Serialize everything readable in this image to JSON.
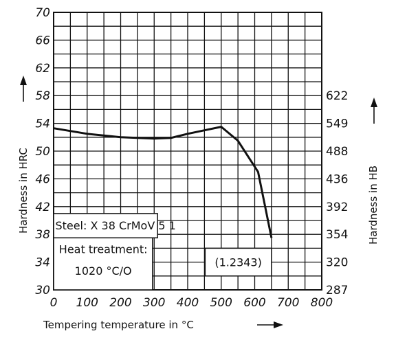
{
  "chart_data": {
    "type": "line",
    "title": "",
    "xlabel": "Tempering temperature in °C",
    "ylabel": "Hardness in HRC",
    "y2label": "Hardness in HB",
    "xlim": [
      0,
      800
    ],
    "ylim": [
      30,
      70
    ],
    "grid": true,
    "x_ticks": [
      "0",
      "100",
      "200",
      "300",
      "400",
      "500",
      "600",
      "700",
      "800"
    ],
    "y_ticks": [
      "30",
      "34",
      "38",
      "42",
      "46",
      "50",
      "54",
      "58",
      "62",
      "66",
      "70"
    ],
    "y2_ticks": [
      {
        "hrc": 30,
        "label": "287"
      },
      {
        "hrc": 34,
        "label": "320"
      },
      {
        "hrc": 38,
        "label": "354"
      },
      {
        "hrc": 42,
        "label": "392"
      },
      {
        "hrc": 46,
        "label": "436"
      },
      {
        "hrc": 50,
        "label": "488"
      },
      {
        "hrc": 54,
        "label": "549"
      },
      {
        "hrc": 58,
        "label": "622"
      }
    ],
    "series": [
      {
        "name": "",
        "x": [
          0,
          100,
          200,
          300,
          350,
          400,
          450,
          500,
          550,
          610,
          650
        ],
        "y": [
          53.3,
          52.5,
          52.0,
          51.8,
          51.9,
          52.5,
          53.0,
          53.5,
          51.5,
          47.0,
          37.5
        ]
      }
    ],
    "annotations": {
      "steel": "Steel: X 38 CrMoV 5 1",
      "heat_treatment_line1": "Heat treatment:",
      "heat_treatment_line2": "1020 °C/O",
      "material_number": "(1.2343)"
    }
  }
}
